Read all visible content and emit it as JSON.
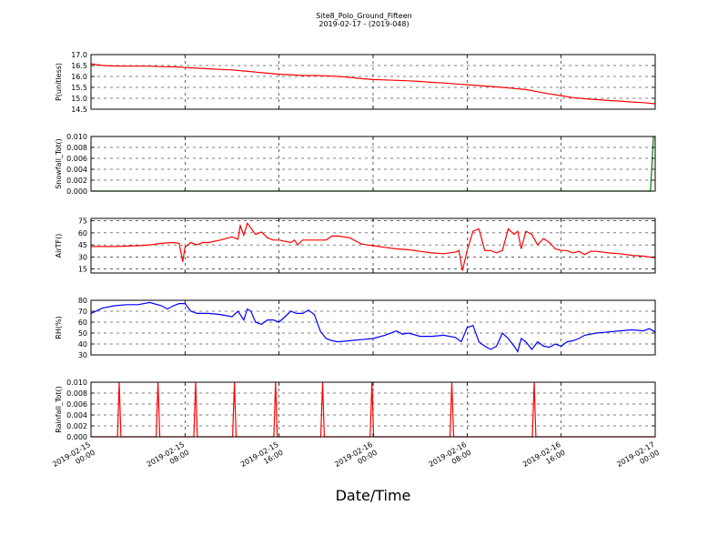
{
  "figure": {
    "title": "Site8_Polo_Ground_Fifteen",
    "subtitle": "2019-02-17 - (2019-048)",
    "xlabel": "Date/Time"
  },
  "chart_data": [
    {
      "type": "line",
      "ylabel": "P(unitless)",
      "ylim": [
        14.5,
        17.0
      ],
      "yticks": [
        "17.0",
        "16.5",
        "16.0",
        "15.5",
        "15.0",
        "14.5"
      ],
      "xlim": [
        0,
        48
      ],
      "grid": true,
      "series": [
        {
          "color": "#ff0000",
          "x": [
            0,
            1,
            2,
            3,
            4,
            5,
            6,
            7,
            8,
            9,
            10,
            11,
            12,
            13,
            14,
            15,
            16,
            17,
            18,
            19,
            20,
            21,
            22,
            23,
            24,
            25,
            26,
            27,
            28,
            29,
            30,
            31,
            32,
            33,
            34,
            35,
            36,
            37,
            38,
            39,
            40,
            41,
            42,
            43,
            44,
            45,
            46,
            47,
            48
          ],
          "y": [
            16.58,
            16.5,
            16.48,
            16.47,
            16.47,
            16.47,
            16.45,
            16.44,
            16.41,
            16.38,
            16.35,
            16.32,
            16.3,
            16.25,
            16.2,
            16.15,
            16.1,
            16.08,
            16.04,
            16.04,
            16.03,
            16.0,
            15.96,
            15.9,
            15.86,
            15.84,
            15.82,
            15.8,
            15.77,
            15.73,
            15.7,
            15.66,
            15.62,
            15.58,
            15.54,
            15.5,
            15.45,
            15.4,
            15.3,
            15.2,
            15.12,
            15.03,
            14.98,
            14.94,
            14.9,
            14.87,
            14.83,
            14.8,
            14.75
          ]
        }
      ]
    },
    {
      "type": "line",
      "ylabel": "Snowfall_Tot()",
      "ylim": [
        0,
        0.01
      ],
      "yticks": [
        "0.010",
        "0.008",
        "0.006",
        "0.004",
        "0.002",
        "0.000"
      ],
      "xlim": [
        0,
        48
      ],
      "grid": true,
      "series": [
        {
          "color": "#008000",
          "x": [
            0,
            47.6,
            47.85,
            48
          ],
          "y": [
            0,
            0,
            0.01,
            0.01
          ]
        }
      ]
    },
    {
      "type": "line",
      "ylabel": "AirTF()",
      "ylim": [
        10,
        78
      ],
      "yticks": [
        "75",
        "60",
        "45",
        "30",
        "15"
      ],
      "xlim": [
        0,
        48
      ],
      "grid": true,
      "series": [
        {
          "color": "#ff0000",
          "x": [
            0,
            2,
            4,
            5,
            6,
            7,
            7.5,
            7.8,
            8.0,
            8.5,
            9,
            9.5,
            10,
            11,
            12,
            12.5,
            12.7,
            13,
            13.3,
            13.5,
            14,
            14.5,
            15,
            15.5,
            16,
            17,
            17.3,
            17.6,
            18,
            18.5,
            19,
            19.5,
            20,
            20.5,
            21,
            22,
            23,
            24,
            25,
            26,
            27,
            28,
            29,
            30,
            31,
            31.3,
            31.6,
            32,
            32.5,
            33,
            33.5,
            34,
            34.5,
            35,
            35.5,
            36,
            36.3,
            36.6,
            37,
            37.5,
            38,
            38.5,
            39,
            39.5,
            40,
            40.5,
            41,
            41.5,
            42,
            42.5,
            43,
            44,
            45,
            46,
            47,
            48
          ],
          "y": [
            43,
            43,
            44,
            45,
            47,
            48,
            47,
            24,
            42,
            48,
            45,
            48,
            48,
            51,
            55,
            52,
            69,
            57,
            72,
            68,
            58,
            61,
            54,
            51,
            51,
            48,
            51,
            45,
            51,
            51,
            51,
            51,
            51,
            56,
            56,
            54,
            46,
            44,
            42,
            40,
            39,
            37,
            35,
            34,
            36,
            38,
            13,
            38,
            62,
            65,
            38,
            38,
            35,
            38,
            65,
            58,
            62,
            40,
            62,
            58,
            45,
            53,
            48,
            40,
            38,
            38,
            35,
            37,
            33,
            37,
            37,
            35,
            34,
            32,
            31,
            29
          ]
        }
      ]
    },
    {
      "type": "line",
      "ylabel": "RH(%)",
      "ylim": [
        30,
        80
      ],
      "yticks": [
        "80",
        "70",
        "60",
        "50",
        "40",
        "30"
      ],
      "xlim": [
        0,
        48
      ],
      "grid": true,
      "series": [
        {
          "color": "#0000ff",
          "x": [
            0,
            1,
            2,
            3,
            4,
            5,
            6,
            6.5,
            7,
            7.5,
            8,
            8.5,
            9,
            10,
            11,
            12,
            12.5,
            13,
            13.3,
            13.6,
            14,
            14.5,
            15,
            15.5,
            16,
            17,
            17.5,
            18,
            18.5,
            19,
            19.5,
            20,
            20.5,
            21,
            22,
            23,
            24,
            25,
            25.5,
            26,
            26.5,
            27,
            28,
            29,
            30,
            31,
            31.5,
            32,
            32.5,
            33,
            33.5,
            34,
            34.5,
            35,
            35.5,
            36,
            36.3,
            36.6,
            37,
            37.5,
            38,
            38.5,
            39,
            39.5,
            40,
            40.5,
            41,
            41.5,
            42,
            43,
            44,
            45,
            46,
            47,
            47.5,
            48
          ],
          "y": [
            68,
            73,
            75,
            76,
            76,
            78,
            75,
            72,
            75,
            77,
            77,
            70,
            68,
            68,
            67,
            65,
            70,
            62,
            72,
            70,
            60,
            58,
            62,
            62,
            60,
            70,
            68,
            68,
            71,
            67,
            52,
            45,
            43,
            42,
            43,
            44,
            45,
            48,
            50,
            52,
            49,
            50,
            47,
            47,
            48,
            46,
            42,
            55,
            57,
            42,
            38,
            35,
            38,
            50,
            45,
            38,
            33,
            45,
            42,
            35,
            42,
            38,
            37,
            40,
            38,
            42,
            43,
            45,
            48,
            50,
            51,
            52,
            53,
            52,
            54,
            51
          ]
        }
      ]
    },
    {
      "type": "line",
      "ylabel": "Rainfall_Tot()",
      "ylim": [
        0,
        0.01
      ],
      "yticks": [
        "0.010",
        "0.008",
        "0.006",
        "0.004",
        "0.002",
        "0.000"
      ],
      "xlim": [
        0,
        48
      ],
      "grid": true,
      "spikes_at": [
        2.4,
        5.7,
        8.9,
        12.2,
        15.7,
        19.7,
        23.9,
        30.7,
        37.7
      ],
      "spike_value": 0.01,
      "series": [
        {
          "color": "#ff0000",
          "x": [],
          "y": []
        }
      ]
    }
  ],
  "x_ticks": {
    "positions": [
      0,
      8,
      16,
      24,
      32,
      40,
      48
    ],
    "labels": [
      [
        "2019-02-15",
        "00:00"
      ],
      [
        "2019-02-15",
        "08:00"
      ],
      [
        "2019-02-15",
        "16:00"
      ],
      [
        "2019-02-16",
        "00:00"
      ],
      [
        "2019-02-16",
        "08:00"
      ],
      [
        "2019-02-16",
        "16:00"
      ],
      [
        "2019-02-17",
        "00:00"
      ]
    ]
  }
}
